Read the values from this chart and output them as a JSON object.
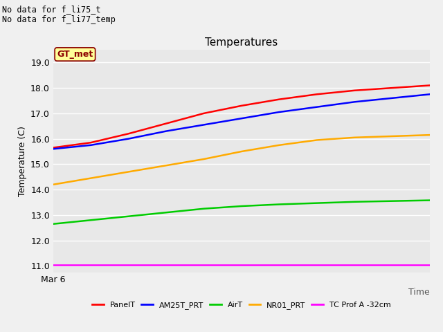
{
  "title": "Temperatures",
  "xlabel": "Time",
  "ylabel": "Temperature (C)",
  "annotation_lines": [
    "No data for f_li75_t",
    "No data for f_li77_temp"
  ],
  "gt_met_label": "GT_met",
  "x_tick_label": "Mar 6",
  "ylim": [
    10.75,
    19.5
  ],
  "xlim": [
    0,
    1
  ],
  "yticks": [
    11.0,
    12.0,
    13.0,
    14.0,
    15.0,
    16.0,
    17.0,
    18.0,
    19.0
  ],
  "series": {
    "PanelT": {
      "color": "#ff0000",
      "x": [
        0.0,
        0.1,
        0.2,
        0.3,
        0.4,
        0.5,
        0.6,
        0.7,
        0.8,
        0.9,
        1.0
      ],
      "y": [
        15.65,
        15.85,
        16.2,
        16.6,
        17.0,
        17.3,
        17.55,
        17.75,
        17.9,
        18.0,
        18.1
      ]
    },
    "AM25T_PRT": {
      "color": "#0000ff",
      "x": [
        0.0,
        0.1,
        0.2,
        0.3,
        0.4,
        0.5,
        0.6,
        0.7,
        0.8,
        0.9,
        1.0
      ],
      "y": [
        15.6,
        15.75,
        16.0,
        16.3,
        16.55,
        16.8,
        17.05,
        17.25,
        17.45,
        17.6,
        17.75
      ]
    },
    "AirT": {
      "color": "#00cc00",
      "x": [
        0.0,
        0.1,
        0.2,
        0.3,
        0.4,
        0.5,
        0.6,
        0.7,
        0.8,
        0.9,
        1.0
      ],
      "y": [
        12.65,
        12.8,
        12.95,
        13.1,
        13.25,
        13.35,
        13.42,
        13.47,
        13.52,
        13.55,
        13.58
      ]
    },
    "NR01_PRT": {
      "color": "#ffaa00",
      "x": [
        0.0,
        0.1,
        0.2,
        0.3,
        0.4,
        0.5,
        0.6,
        0.7,
        0.8,
        0.9,
        1.0
      ],
      "y": [
        14.2,
        14.45,
        14.7,
        14.95,
        15.2,
        15.5,
        15.75,
        15.95,
        16.05,
        16.1,
        16.15
      ]
    },
    "TC Prof A -32cm": {
      "color": "#ff00ff",
      "x": [
        0.0,
        0.1,
        0.2,
        0.3,
        0.4,
        0.5,
        0.6,
        0.7,
        0.8,
        0.9,
        1.0
      ],
      "y": [
        11.05,
        11.05,
        11.05,
        11.05,
        11.05,
        11.05,
        11.05,
        11.05,
        11.05,
        11.05,
        11.05
      ]
    }
  },
  "plot_bg_color": "#e8e8e8",
  "fig_bg_color": "#f0f0f0",
  "gt_met_box_color": "#ffff99",
  "gt_met_text_color": "#8b0000",
  "gt_met_border_color": "#8b0000",
  "grid_color": "#ffffff",
  "title_fontsize": 11,
  "axis_fontsize": 9,
  "tick_fontsize": 9,
  "legend_fontsize": 8
}
